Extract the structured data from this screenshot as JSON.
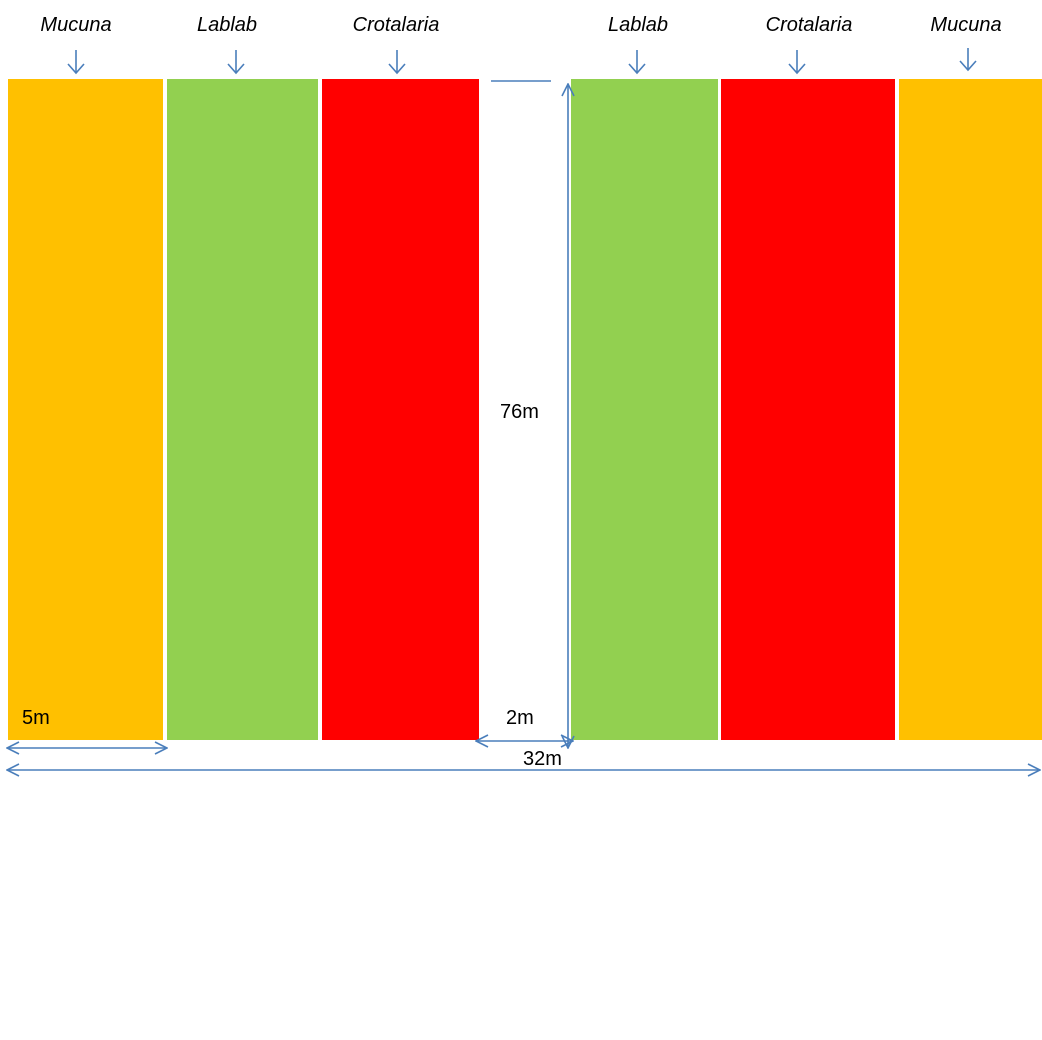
{
  "colors": {
    "mucuna": "#FFC000",
    "lablab": "#92D050",
    "crotalaria": "#FF0000",
    "arrow": "#4A7EBB",
    "background": "#FFFFFF"
  },
  "plots": [
    {
      "name": "Mucuna",
      "color": "#FFC000"
    },
    {
      "name": "Lablab",
      "color": "#92D050"
    },
    {
      "name": "Crotalaria",
      "color": "#FF0000"
    },
    {
      "name": "Lablab",
      "color": "#92D050"
    },
    {
      "name": "Crotalaria",
      "color": "#FF0000"
    },
    {
      "name": "Mucuna",
      "color": "#FFC000"
    }
  ],
  "dimensions": {
    "plot_length": "76m",
    "plot_width": "5m",
    "path_width": "2m",
    "total_width": "32m"
  },
  "icons": {
    "plot_marker": "down-arrow-icon",
    "dimension": "double-arrow-icon"
  }
}
